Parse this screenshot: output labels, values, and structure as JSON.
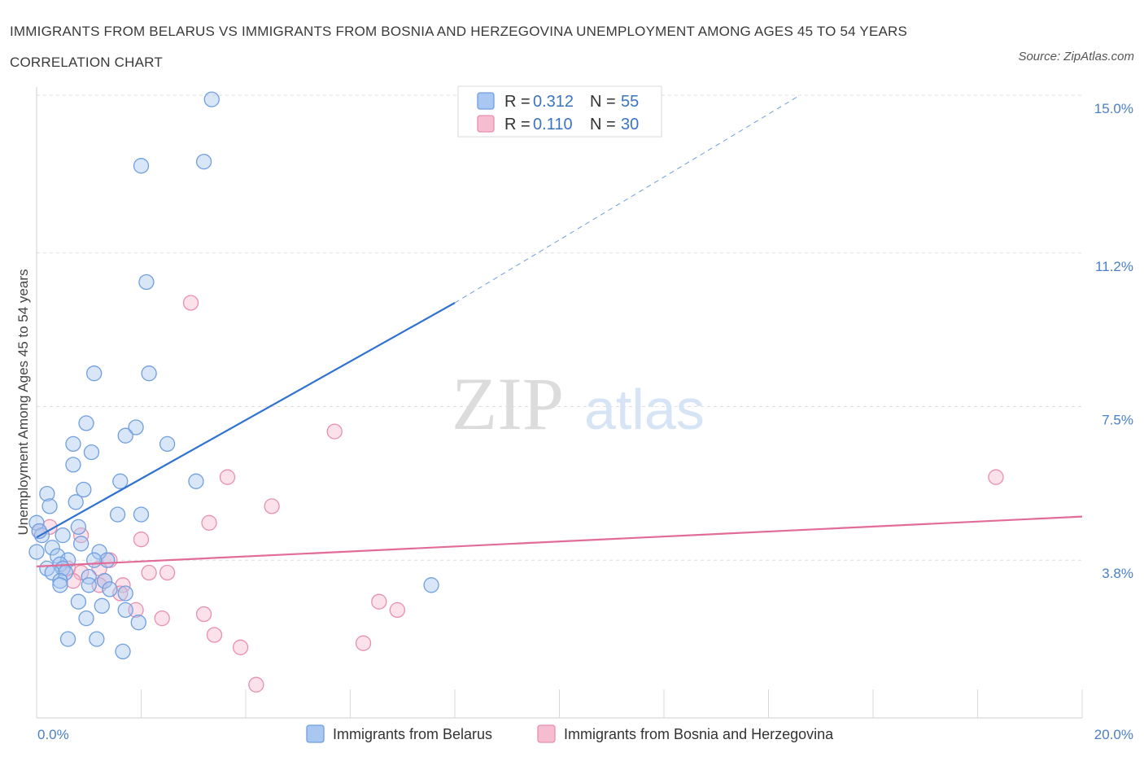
{
  "header": {
    "title": "IMMIGRANTS FROM BELARUS VS IMMIGRANTS FROM BOSNIA AND HERZEGOVINA UNEMPLOYMENT AMONG AGES 45 TO 54 YEARS CORRELATION CHART",
    "source": "Source: ZipAtlas.com"
  },
  "watermark": {
    "zip": "ZIP",
    "atlas": "atlas"
  },
  "colors": {
    "belarus_fill": "#a9c7f0",
    "belarus_stroke": "#6f9fe0",
    "belarus_line": "#2f72d0",
    "bosnia_fill": "#f6bdd0",
    "bosnia_stroke": "#e88fae",
    "bosnia_line": "#e06c97",
    "grid": "#dedede",
    "tick_text": "#4a7fc8"
  },
  "chart_data": {
    "type": "scatter",
    "title": "IMMIGRANTS FROM BELARUS VS IMMIGRANTS FROM BOSNIA AND HERZEGOVINA UNEMPLOYMENT AMONG AGES 45 TO 54 YEARS CORRELATION CHART",
    "xlabel": "",
    "ylabel": "Unemployment Among Ages 45 to 54 years",
    "xlim": [
      0,
      20
    ],
    "ylim": [
      0,
      15
    ],
    "x_tick_labels": [
      "0.0%",
      "20.0%"
    ],
    "y_ticks": [
      3.8,
      7.5,
      11.2,
      15.0
    ],
    "y_tick_labels": [
      "3.8%",
      "7.5%",
      "11.2%",
      "15.0%"
    ],
    "grid": true,
    "legend_position": "top-center",
    "series": [
      {
        "name": "Immigrants from Belarus",
        "R": "0.312",
        "N": "55",
        "trend": {
          "x": [
            0.0,
            8.0
          ],
          "y": [
            4.35,
            10.0
          ],
          "dashed_to": [
            14.6,
            15.0
          ]
        },
        "points": [
          [
            3.35,
            14.9
          ],
          [
            2.0,
            13.3
          ],
          [
            3.2,
            13.4
          ],
          [
            2.1,
            10.5
          ],
          [
            1.1,
            8.3
          ],
          [
            2.15,
            8.3
          ],
          [
            0.95,
            7.1
          ],
          [
            1.9,
            7.0
          ],
          [
            1.7,
            6.8
          ],
          [
            2.5,
            6.6
          ],
          [
            0.7,
            6.6
          ],
          [
            1.05,
            6.4
          ],
          [
            0.7,
            6.1
          ],
          [
            1.6,
            5.7
          ],
          [
            3.05,
            5.7
          ],
          [
            0.2,
            5.4
          ],
          [
            0.9,
            5.5
          ],
          [
            0.75,
            5.2
          ],
          [
            0.25,
            5.1
          ],
          [
            1.55,
            4.9
          ],
          [
            2.0,
            4.9
          ],
          [
            0.0,
            4.7
          ],
          [
            0.8,
            4.6
          ],
          [
            0.1,
            4.4
          ],
          [
            0.5,
            4.4
          ],
          [
            0.85,
            4.2
          ],
          [
            0.3,
            4.1
          ],
          [
            1.2,
            4.0
          ],
          [
            0.0,
            4.0
          ],
          [
            0.4,
            3.9
          ],
          [
            0.6,
            3.8
          ],
          [
            1.35,
            3.8
          ],
          [
            1.1,
            3.8
          ],
          [
            0.45,
            3.7
          ],
          [
            0.5,
            3.6
          ],
          [
            0.2,
            3.6
          ],
          [
            0.55,
            3.5
          ],
          [
            0.3,
            3.5
          ],
          [
            0.45,
            3.3
          ],
          [
            1.0,
            3.4
          ],
          [
            0.45,
            3.2
          ],
          [
            1.3,
            3.3
          ],
          [
            1.4,
            3.1
          ],
          [
            1.0,
            3.2
          ],
          [
            1.7,
            3.0
          ],
          [
            0.8,
            2.8
          ],
          [
            1.25,
            2.7
          ],
          [
            1.7,
            2.6
          ],
          [
            0.95,
            2.4
          ],
          [
            1.95,
            2.3
          ],
          [
            0.6,
            1.9
          ],
          [
            1.15,
            1.9
          ],
          [
            1.65,
            1.6
          ],
          [
            7.55,
            3.2
          ],
          [
            0.05,
            4.5
          ]
        ]
      },
      {
        "name": "Immigrants from Bosnia and Herzegovina",
        "R": "0.110",
        "N": "30",
        "trend": {
          "x": [
            0.0,
            20.0
          ],
          "y": [
            3.65,
            4.85
          ]
        },
        "points": [
          [
            2.95,
            10.0
          ],
          [
            5.7,
            6.9
          ],
          [
            18.35,
            5.8
          ],
          [
            3.65,
            5.8
          ],
          [
            4.5,
            5.1
          ],
          [
            3.3,
            4.7
          ],
          [
            0.25,
            4.6
          ],
          [
            0.05,
            4.5
          ],
          [
            0.85,
            4.4
          ],
          [
            2.0,
            4.3
          ],
          [
            1.4,
            3.8
          ],
          [
            1.2,
            3.6
          ],
          [
            0.6,
            3.6
          ],
          [
            0.85,
            3.5
          ],
          [
            2.15,
            3.5
          ],
          [
            2.5,
            3.5
          ],
          [
            1.3,
            3.3
          ],
          [
            0.7,
            3.3
          ],
          [
            1.65,
            3.2
          ],
          [
            1.2,
            3.2
          ],
          [
            1.6,
            3.0
          ],
          [
            6.55,
            2.8
          ],
          [
            6.9,
            2.6
          ],
          [
            1.9,
            2.6
          ],
          [
            3.2,
            2.5
          ],
          [
            2.4,
            2.4
          ],
          [
            3.4,
            2.0
          ],
          [
            6.25,
            1.8
          ],
          [
            3.9,
            1.7
          ],
          [
            4.2,
            0.8
          ]
        ]
      }
    ]
  }
}
